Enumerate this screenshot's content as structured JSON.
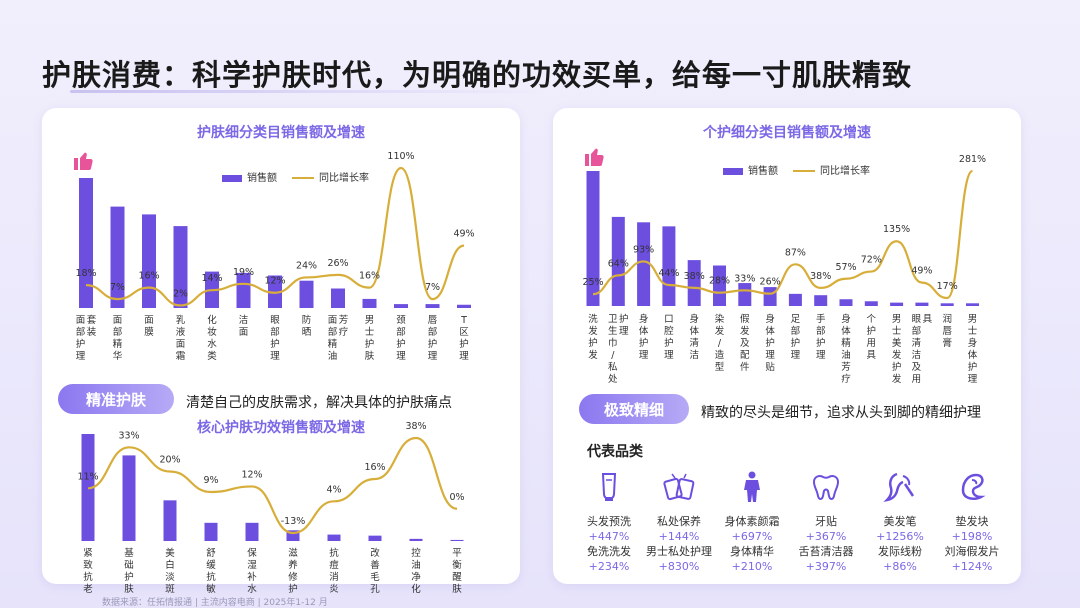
{
  "page": {
    "title": "护肤消费：科学护肤时代，为明确的功效买单，给每一寸肌肤精致",
    "source": "数据来源：任拓情报通 | 主流内容电商 | 2025年1-12 月"
  },
  "colors": {
    "bar": "#6d4fe0",
    "line": "#d8ae3a",
    "accent": "#7a68e6",
    "thumb": "#e8549a"
  },
  "left": {
    "pill_label": "精准护肤",
    "pill_desc": "清楚自己的皮肤需求，解决具体的护肤痛点"
  },
  "right": {
    "pill_label": "极致精细",
    "pill_desc": "精致的尽头是细节，追求从头到脚的精细护理",
    "products_heading": "代表品类",
    "products": [
      {
        "icon": "tube-icon",
        "lines": [
          {
            "name": "头发预洗",
            "growth": "+447%"
          },
          {
            "name": "免洗洗发",
            "growth": "+234%"
          }
        ]
      },
      {
        "icon": "wipes-icon",
        "lines": [
          {
            "name": "私处保养",
            "growth": "+144%"
          },
          {
            "name": "男士私处护理",
            "growth": "+830%"
          }
        ]
      },
      {
        "icon": "body-icon",
        "lines": [
          {
            "name": "身体素颜霜",
            "growth": "+697%"
          },
          {
            "name": "身体精华",
            "growth": "+210%"
          }
        ]
      },
      {
        "icon": "tooth-icon",
        "lines": [
          {
            "name": "牙贴",
            "growth": "+367%"
          },
          {
            "name": "舌苔清洁器",
            "growth": "+397%"
          }
        ]
      },
      {
        "icon": "hair-curl-icon",
        "lines": [
          {
            "name": "美发笔",
            "growth": "+1256%"
          },
          {
            "name": "发际线粉",
            "growth": "+86%"
          }
        ]
      },
      {
        "icon": "hair-pad-icon",
        "lines": [
          {
            "name": "垫发块",
            "growth": "+198%"
          },
          {
            "name": "刘海假发片",
            "growth": "+124%"
          }
        ]
      }
    ]
  },
  "chart_data": [
    {
      "id": "skincare-subcategory",
      "type": "bar",
      "title": "护肤细分类目销售额及增速",
      "legend": [
        "销售额",
        "同比增长率"
      ],
      "legend_position": "top",
      "categories": [
        "面部护理套装",
        "面部精华",
        "面膜",
        "乳液面霜",
        "化妆水类",
        "洁面",
        "眼部护理",
        "防晒",
        "面部精油芳疗",
        "男士护肤",
        "颈部护理",
        "唇部护理",
        "T区护理"
      ],
      "series": [
        {
          "name": "销售额",
          "kind": "bar",
          "values": [
            100,
            78,
            72,
            63,
            28,
            27,
            25,
            21,
            15,
            7,
            3,
            3,
            2.5
          ]
        },
        {
          "name": "同比增长率",
          "kind": "line",
          "unit": "%",
          "values": [
            18,
            7,
            16,
            2,
            14,
            19,
            12,
            24,
            26,
            16,
            110,
            7,
            49
          ]
        }
      ],
      "labels": [
        "18%",
        "7%",
        "16%",
        "2%",
        "14%",
        "19%",
        "12%",
        "24%",
        "26%",
        "16%",
        "110%",
        "7%",
        "49%"
      ]
    },
    {
      "id": "skincare-efficacy",
      "type": "bar",
      "title": "核心护肤功效销售额及增速",
      "categories": [
        "紧致抗老",
        "基础护肤",
        "美白淡斑",
        "舒缓抗敏",
        "保湿补水",
        "滋养修护",
        "抗痘消炎",
        "改善毛孔",
        "控油净化",
        "平衡醒肤"
      ],
      "series": [
        {
          "name": "销售额",
          "kind": "bar",
          "values": [
            100,
            80,
            38,
            17,
            17,
            10,
            6,
            5,
            2,
            1
          ]
        },
        {
          "name": "同比增长率",
          "kind": "line",
          "unit": "%",
          "values": [
            11,
            33,
            20,
            9,
            12,
            -13,
            4,
            16,
            38,
            0
          ]
        }
      ],
      "labels": [
        "11%",
        "33%",
        "20%",
        "9%",
        "12%",
        "-13%",
        "4%",
        "16%",
        "38%",
        "0%"
      ]
    },
    {
      "id": "personal-care-subcategory",
      "type": "bar",
      "title": "个护细分类目销售额及增速",
      "legend": [
        "销售额",
        "同比增长率"
      ],
      "legend_position": "top",
      "categories": [
        "洗发护发",
        "卫生巾/私处护理",
        "身体护理",
        "口腔护理",
        "身体清洁",
        "染发/造型",
        "假发及配件",
        "身体护理贴",
        "足部护理",
        "手部护理",
        "身体精油芳疗",
        "个护用具",
        "男士美发护发",
        "眼部清洁及用具",
        "润唇膏",
        "男士身体护理"
      ],
      "series": [
        {
          "name": "销售额",
          "kind": "bar",
          "values": [
            100,
            66,
            62,
            59,
            34,
            30,
            17,
            14,
            9,
            8,
            5,
            3.5,
            2.5,
            2.5,
            2,
            2
          ]
        },
        {
          "name": "同比增长率",
          "kind": "line",
          "unit": "%",
          "values": [
            25,
            64,
            93,
            44,
            38,
            28,
            33,
            26,
            87,
            38,
            57,
            72,
            135,
            49,
            17,
            281
          ]
        }
      ],
      "labels": [
        "25%",
        "64%",
        "93%",
        "44%",
        "38%",
        "28%",
        "33%",
        "26%",
        "87%",
        "38%",
        "57%",
        "72%",
        "135%",
        "49%",
        "17%",
        "281%"
      ]
    }
  ]
}
